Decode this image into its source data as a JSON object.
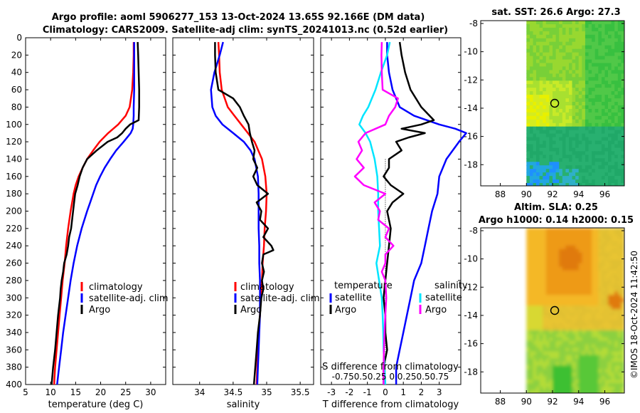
{
  "header": {
    "title_line1": "Argo profile: aoml 5906277_153 13-Oct-2024 13.65S 92.166E (DM data)",
    "title_line2": "Climatology: CARS2009. Satellite-adj clim: synTS_20241013.nc (0.52d earlier)"
  },
  "watermark": "©IMOS 18-Oct-2024 11:42:50",
  "colors": {
    "climatology": "#ff0000",
    "satellite": "#0000ff",
    "argo": "#000000",
    "satellite_s": "#00e5ff",
    "argo_s": "#ff00ff"
  },
  "chart_data": [
    {
      "id": "temperature",
      "type": "line",
      "xlabel": "temperature (deg C)",
      "xlim": [
        5,
        33
      ],
      "xticks": [
        "5",
        "10",
        "15",
        "20",
        "25",
        "30"
      ],
      "xtick_values": [
        5,
        10,
        15,
        20,
        25,
        30
      ],
      "ylim": [
        0,
        400
      ],
      "yticks": [
        "0",
        "20",
        "40",
        "60",
        "80",
        "100",
        "120",
        "140",
        "160",
        "180",
        "200",
        "220",
        "240",
        "260",
        "280",
        "300",
        "320",
        "340",
        "360",
        "380",
        "400"
      ],
      "legend": [
        "climatology",
        "satellite-adj. clim",
        "Argo"
      ],
      "series": [
        {
          "name": "climatology",
          "color": "#ff0000",
          "depth": [
            5,
            20,
            40,
            60,
            80,
            90,
            100,
            110,
            120,
            130,
            140,
            150,
            160,
            170,
            180,
            190,
            200,
            220,
            240,
            260,
            280,
            300,
            320,
            340,
            360,
            380,
            400
          ],
          "value": [
            26.6,
            26.6,
            26.5,
            26.3,
            25.8,
            25.0,
            23.5,
            21.5,
            19.8,
            18.5,
            17.3,
            16.4,
            15.6,
            15.0,
            14.6,
            14.3,
            14.0,
            13.5,
            13.1,
            12.8,
            12.4,
            12.1,
            11.8,
            11.5,
            11.2,
            10.9,
            10.7
          ]
        },
        {
          "name": "satellite-adj. clim",
          "color": "#0000ff",
          "depth": [
            5,
            20,
            40,
            60,
            80,
            90,
            100,
            105,
            110,
            120,
            130,
            140,
            150,
            160,
            170,
            180,
            190,
            200,
            220,
            240,
            260,
            280,
            300,
            320,
            340,
            360,
            380,
            400
          ],
          "value": [
            26.7,
            26.7,
            26.7,
            26.7,
            26.6,
            26.6,
            26.5,
            26.4,
            26.0,
            24.6,
            23.1,
            21.9,
            20.8,
            19.9,
            19.1,
            18.5,
            17.9,
            17.3,
            16.2,
            15.3,
            14.6,
            14.0,
            13.5,
            13.0,
            12.5,
            12.1,
            11.7,
            11.3
          ]
        },
        {
          "name": "Argo",
          "color": "#000000",
          "depth": [
            5,
            20,
            40,
            60,
            80,
            95,
            100,
            105,
            110,
            115,
            120,
            130,
            140,
            150,
            160,
            170,
            180,
            190,
            200,
            210,
            220,
            230,
            240,
            250,
            260,
            270,
            280,
            290,
            300,
            320,
            340,
            360,
            380,
            400
          ],
          "value": [
            27.4,
            27.5,
            27.6,
            27.7,
            27.7,
            27.6,
            25.9,
            25.0,
            24.3,
            23.3,
            21.4,
            19.2,
            17.3,
            16.4,
            15.8,
            15.4,
            14.9,
            14.7,
            14.5,
            14.3,
            14.1,
            13.7,
            13.5,
            13.2,
            12.7,
            12.5,
            12.2,
            12.0,
            11.9,
            11.5,
            11.2,
            10.9,
            10.5,
            10.2
          ]
        }
      ]
    },
    {
      "id": "salinity",
      "type": "line",
      "xlabel": "salinity",
      "xlim": [
        33.6,
        35.7
      ],
      "xticks": [
        "34",
        "34.5",
        "35",
        "35.5"
      ],
      "xtick_values": [
        34,
        34.5,
        35,
        35.5
      ],
      "ylim": [
        0,
        400
      ],
      "legend": [
        "climatology",
        "satellite-adj. clim",
        "Argo"
      ],
      "series": [
        {
          "name": "climatology",
          "color": "#ff0000",
          "depth": [
            5,
            20,
            40,
            60,
            80,
            90,
            100,
            110,
            120,
            140,
            160,
            180,
            200,
            220,
            240,
            260,
            280,
            300,
            320,
            340,
            360,
            380,
            400
          ],
          "value": [
            34.28,
            34.29,
            34.3,
            34.33,
            34.42,
            34.52,
            34.62,
            34.72,
            34.82,
            34.93,
            34.98,
            35.0,
            34.99,
            34.97,
            34.96,
            34.94,
            34.93,
            34.91,
            34.9,
            34.88,
            34.87,
            34.86,
            34.85
          ]
        },
        {
          "name": "satellite-adj. clim",
          "color": "#0000ff",
          "depth": [
            5,
            20,
            40,
            60,
            80,
            90,
            100,
            110,
            120,
            130,
            140,
            160,
            180,
            200,
            220,
            240,
            260,
            280,
            300,
            320,
            340,
            360,
            380,
            400
          ],
          "value": [
            34.35,
            34.3,
            34.22,
            34.17,
            34.19,
            34.24,
            34.34,
            34.5,
            34.66,
            34.76,
            34.82,
            34.87,
            34.88,
            34.88,
            34.88,
            34.89,
            34.89,
            34.9,
            34.9,
            34.9,
            34.89,
            34.88,
            34.87,
            34.86
          ]
        },
        {
          "name": "Argo",
          "color": "#000000",
          "depth": [
            5,
            20,
            40,
            60,
            70,
            80,
            90,
            100,
            110,
            120,
            130,
            140,
            150,
            160,
            170,
            180,
            190,
            200,
            210,
            220,
            230,
            240,
            245,
            250,
            260,
            270,
            280,
            290,
            300,
            320,
            340,
            360,
            380,
            400
          ],
          "value": [
            34.23,
            34.23,
            34.24,
            34.28,
            34.5,
            34.6,
            34.66,
            34.73,
            34.75,
            34.78,
            34.82,
            34.8,
            34.86,
            34.8,
            34.86,
            35.02,
            34.85,
            34.92,
            34.9,
            35.02,
            34.95,
            35.07,
            35.1,
            34.95,
            34.93,
            34.96,
            34.93,
            34.95,
            34.92,
            34.9,
            34.87,
            34.85,
            34.83,
            34.81
          ]
        }
      ]
    },
    {
      "id": "difference",
      "type": "line",
      "xlabel": "T difference from climatology",
      "xlabel_top": "S difference from climatology",
      "xlim": [
        -3.6,
        4.2
      ],
      "xticks": [
        "-3",
        "-2",
        "-1",
        "0",
        "1",
        "2",
        "3"
      ],
      "xtick_values": [
        -3,
        -2,
        -1,
        0,
        1,
        2,
        3
      ],
      "top_ticks": "-0.750.50.25 0  0.250.50.75",
      "ylim": [
        0,
        400
      ],
      "legend_temperature_title": "temperature",
      "legend_salinity_title": "salinity",
      "legend_temperature": [
        "satellite",
        "Argo"
      ],
      "legend_salinity": [
        "satellite",
        "Argo"
      ],
      "series": [
        {
          "name": "T satellite",
          "color": "#0000ff",
          "depth": [
            5,
            20,
            40,
            60,
            80,
            90,
            100,
            105,
            110,
            120,
            140,
            160,
            180,
            200,
            220,
            240,
            260,
            280,
            300,
            320,
            340,
            360,
            380,
            400
          ],
          "value": [
            0.1,
            0.1,
            0.2,
            0.4,
            0.8,
            1.6,
            3.0,
            3.9,
            4.5,
            4.1,
            3.4,
            3.0,
            2.9,
            2.6,
            2.4,
            2.2,
            2.0,
            1.6,
            1.4,
            1.2,
            1.0,
            0.8,
            0.6,
            0.6
          ]
        },
        {
          "name": "T Argo",
          "color": "#000000",
          "depth": [
            5,
            20,
            40,
            60,
            80,
            95,
            100,
            105,
            110,
            115,
            120,
            130,
            140,
            150,
            160,
            170,
            180,
            190,
            200,
            220,
            240,
            260,
            280,
            300,
            320,
            340,
            360,
            380,
            400
          ],
          "value": [
            0.8,
            0.9,
            1.1,
            1.4,
            2.0,
            2.7,
            2.0,
            0.9,
            2.2,
            1.3,
            0.6,
            0.9,
            0.2,
            0.2,
            -0.1,
            0.3,
            1.0,
            0.4,
            0.1,
            0.3,
            0.2,
            0.1,
            0.0,
            -0.1,
            0.0,
            0.0,
            0.1,
            -0.1,
            -0.1
          ]
        },
        {
          "name": "S satellite",
          "color": "#00e5ff",
          "depth": [
            5,
            20,
            40,
            60,
            80,
            90,
            100,
            110,
            120,
            140,
            160,
            180,
            200,
            220,
            240,
            260,
            280,
            300,
            320,
            340,
            360,
            380,
            400
          ],
          "value": [
            0.25,
            0.1,
            -0.25,
            -0.55,
            -0.95,
            -1.25,
            -1.45,
            -1.1,
            -0.85,
            -0.6,
            -0.45,
            -0.4,
            -0.4,
            -0.35,
            -0.3,
            -0.5,
            -0.35,
            -0.2,
            -0.15,
            -0.12,
            -0.1,
            -0.05,
            0.0
          ]
        },
        {
          "name": "S Argo",
          "color": "#ff00ff",
          "depth": [
            5,
            20,
            40,
            60,
            70,
            80,
            90,
            100,
            110,
            120,
            130,
            140,
            150,
            160,
            170,
            180,
            190,
            200,
            210,
            220,
            230,
            240,
            250,
            260,
            270,
            280,
            300,
            320,
            340,
            360,
            380,
            400
          ],
          "value": [
            -0.2,
            -0.22,
            -0.2,
            -0.15,
            0.7,
            0.55,
            0.2,
            0.0,
            -1.1,
            -1.5,
            -1.3,
            -1.6,
            -1.2,
            -1.7,
            -1.2,
            0.0,
            -0.6,
            -0.3,
            -0.4,
            0.2,
            0.0,
            0.45,
            0.0,
            0.0,
            -0.2,
            0.0,
            0.05,
            0.0,
            -0.05,
            -0.08,
            -0.1,
            -0.1
          ]
        }
      ]
    },
    {
      "id": "sst_map",
      "type": "heatmap",
      "title": "sat. SST: 26.6 Argo: 27.3",
      "xlim": [
        86.5,
        97.5
      ],
      "ylim": [
        -19.5,
        -7.8
      ],
      "xticks": [
        "88",
        "90",
        "92",
        "94",
        "96"
      ],
      "xtick_values": [
        88,
        90,
        92,
        94,
        96
      ],
      "yticks": [
        "-8",
        "-10",
        "-12",
        "-14",
        "-16",
        "-18"
      ],
      "ytick_values": [
        -8,
        -10,
        -12,
        -14,
        -16,
        -18
      ],
      "data_xmin": 90,
      "float_position": [
        92.166,
        -13.65
      ]
    },
    {
      "id": "sla_map",
      "type": "heatmap",
      "title": "Altim. SLA: 0.25",
      "subtitle": "Argo h1000: 0.14 h2000: 0.15",
      "xlim": [
        86.5,
        97.5
      ],
      "ylim": [
        -19.5,
        -7.8
      ],
      "xticks": [
        "88",
        "90",
        "92",
        "94",
        "96"
      ],
      "xtick_values": [
        88,
        90,
        92,
        94,
        96
      ],
      "yticks": [
        "-8",
        "-10",
        "-12",
        "-14",
        "-16",
        "-18"
      ],
      "ytick_values": [
        -8,
        -10,
        -12,
        -14,
        -16,
        -18
      ],
      "data_xmin": 90,
      "float_position": [
        92.166,
        -13.65
      ]
    }
  ]
}
